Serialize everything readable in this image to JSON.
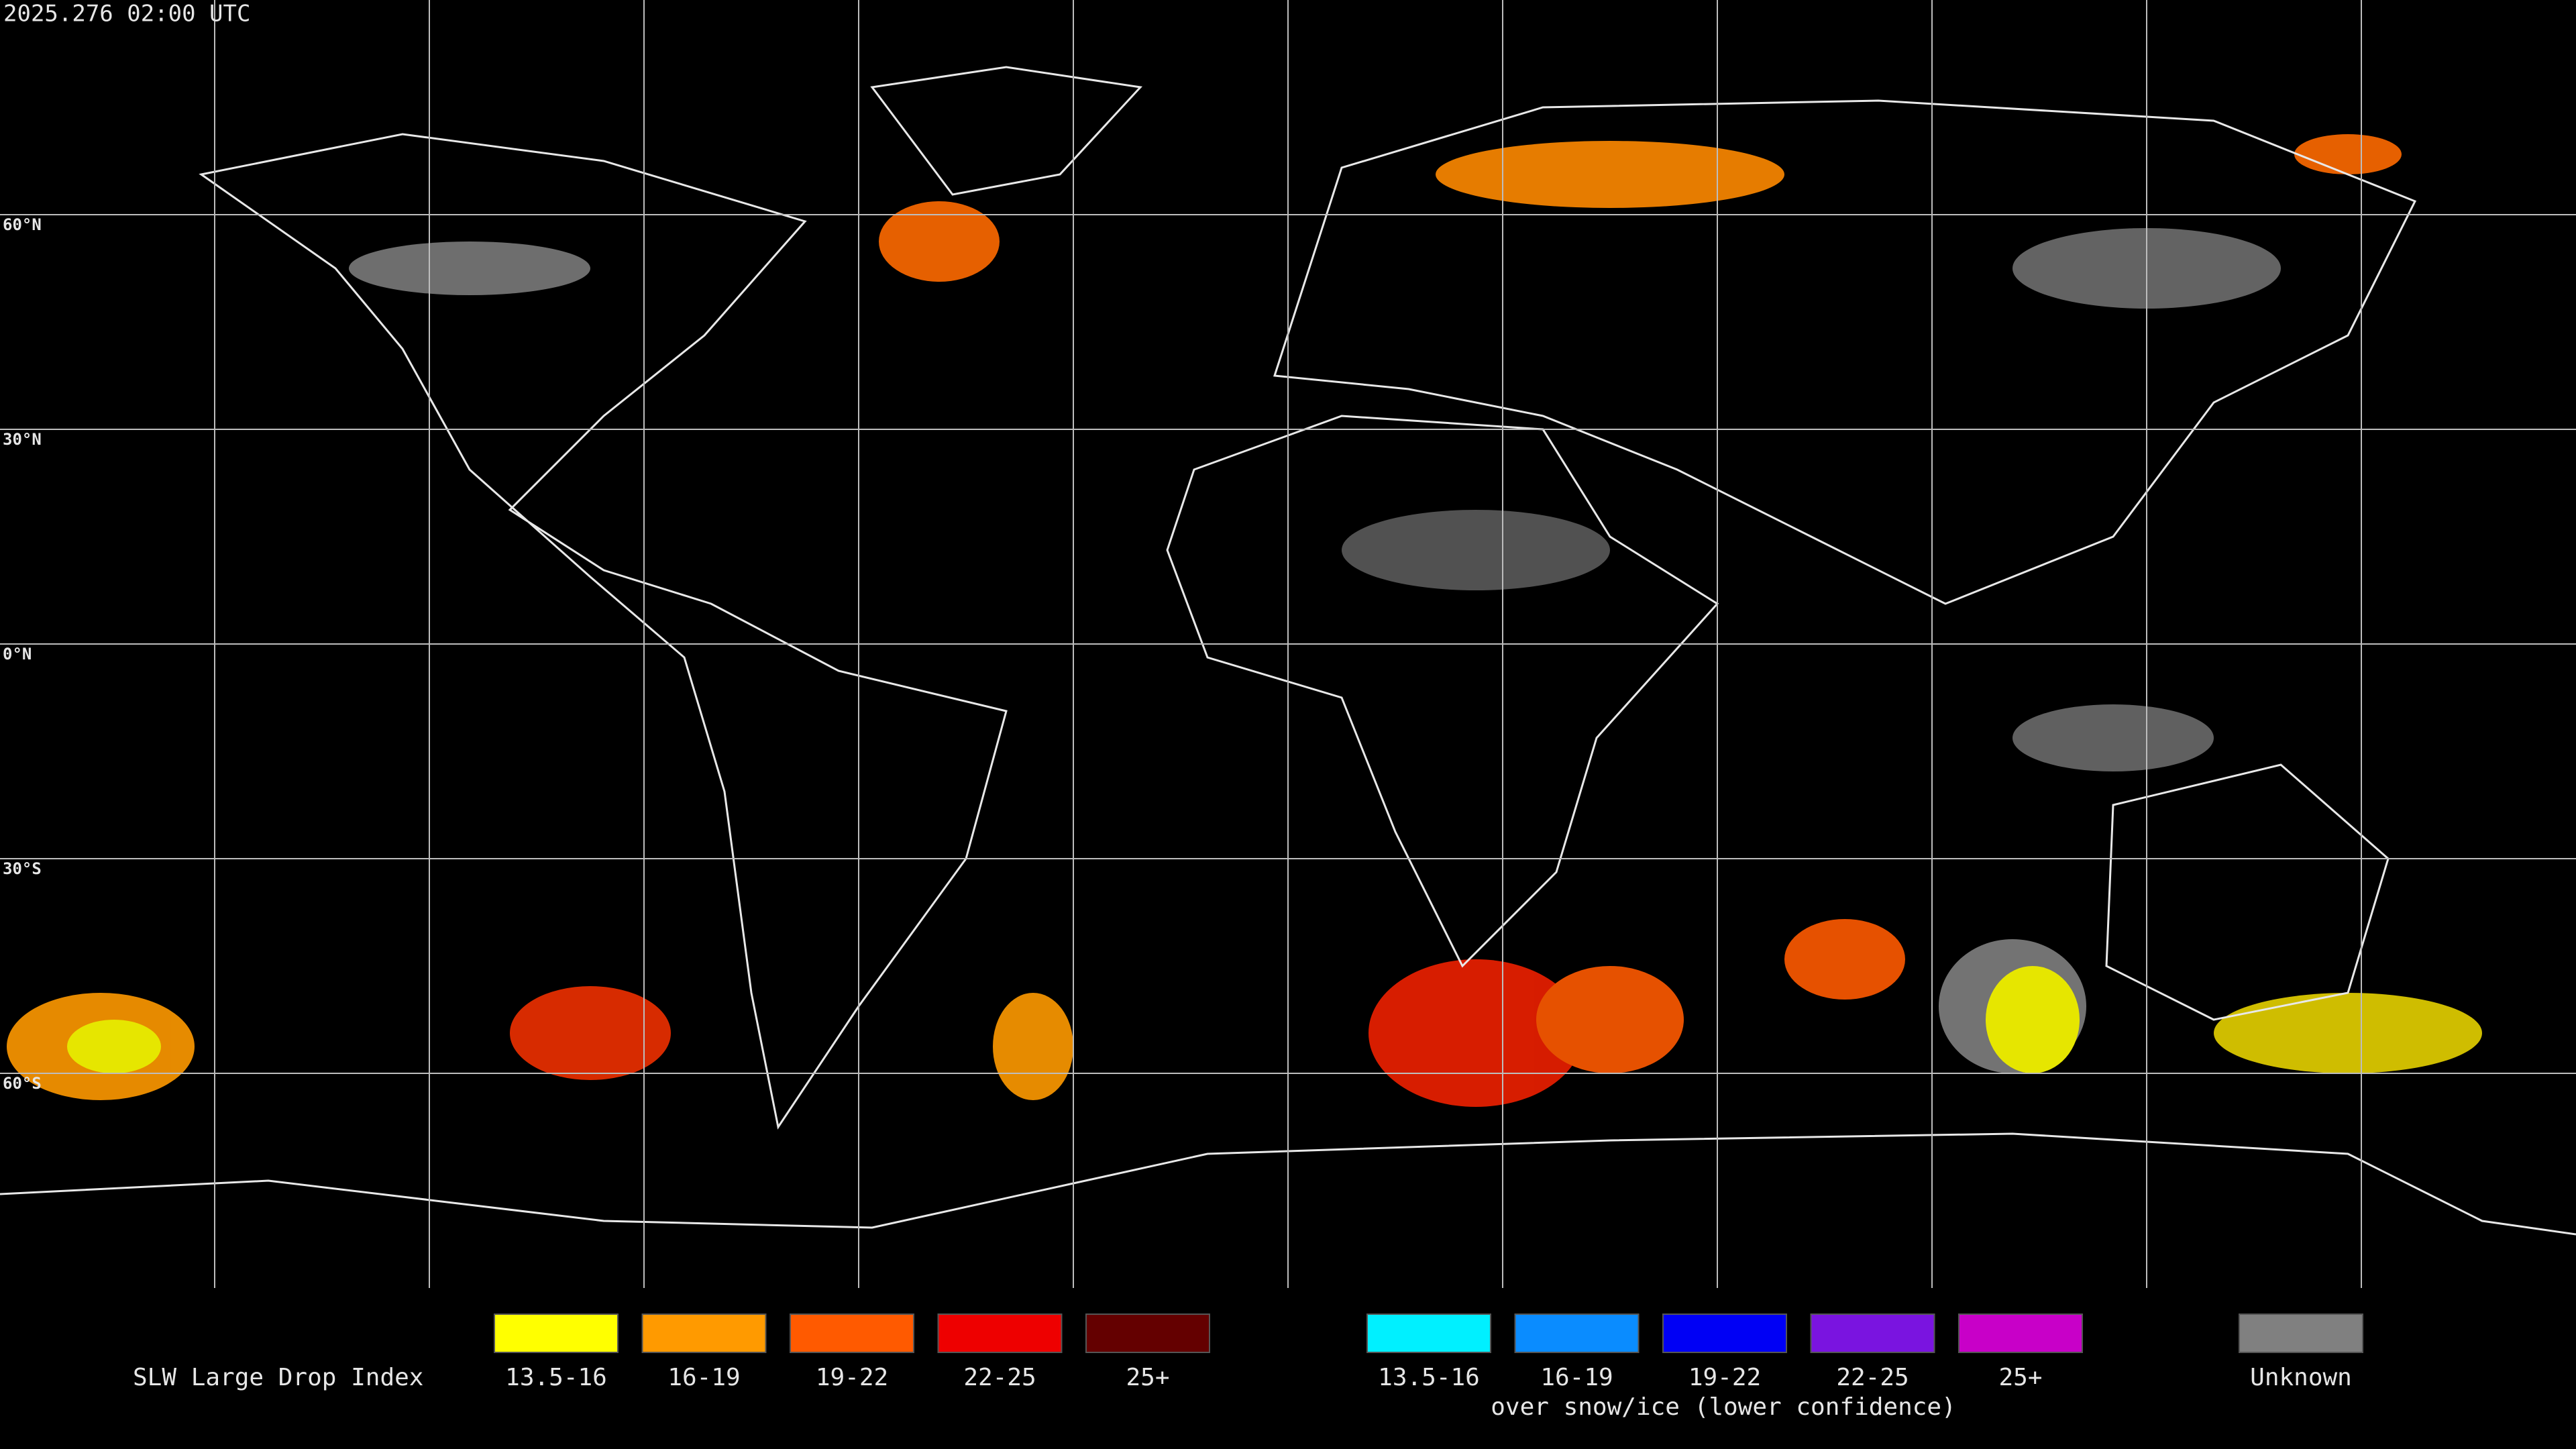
{
  "header": {
    "timestamp": "2025.276 02:00 UTC"
  },
  "grid": {
    "lat_labels": [
      "60°N",
      "30°N",
      "0°N",
      "30°S",
      "60°S"
    ]
  },
  "legend": {
    "title": "SLW Large Drop Index",
    "items": [
      {
        "label": "13.5-16",
        "color": "#ffff00"
      },
      {
        "label": "16-19",
        "color": "#ff9a00"
      },
      {
        "label": "19-22",
        "color": "#ff5a00"
      },
      {
        "label": "22-25",
        "color": "#ee0000"
      },
      {
        "label": "25+",
        "color": "#640000"
      }
    ],
    "snow_items": [
      {
        "label": "13.5-16",
        "color": "#00f0ff"
      },
      {
        "label": "16-19",
        "color": "#0a8cff"
      },
      {
        "label": "19-22",
        "color": "#0000f5"
      },
      {
        "label": "22-25",
        "color": "#7a14e0"
      },
      {
        "label": "25+",
        "color": "#c800c8"
      }
    ],
    "snow_note": "over snow/ice (lower confidence)",
    "unknown": {
      "label": "Unknown",
      "color": "#808080"
    }
  }
}
